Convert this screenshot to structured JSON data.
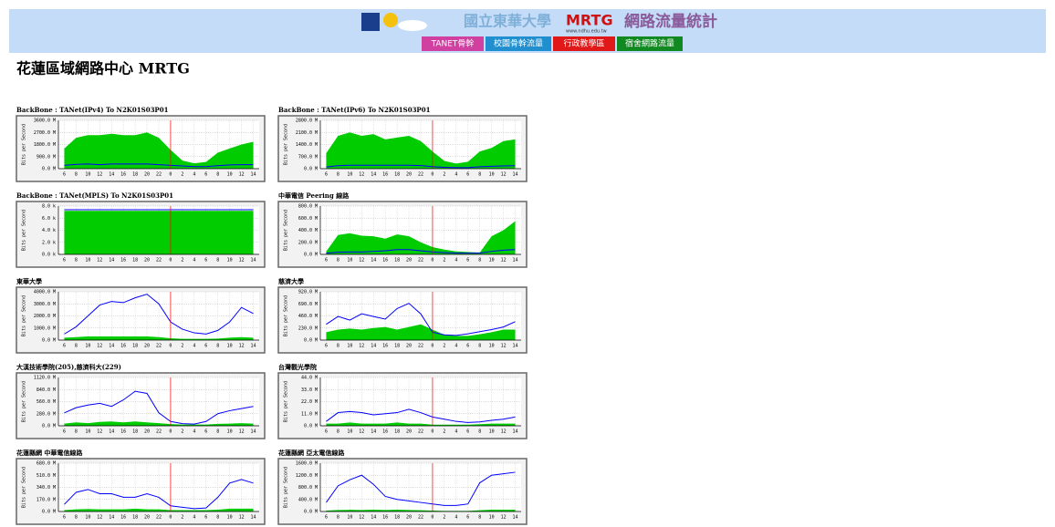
{
  "header": {
    "logo_text": "國立東華大學",
    "brand": "MRTG",
    "url": "www.ndhu.edu.tw",
    "subtitle": "網路流量統計",
    "nav": [
      "TANET骨幹",
      "校園骨幹流量",
      "行政教學區",
      "宿舍網路流量"
    ]
  },
  "page_title": "花蓮區域網路中心 MRTG",
  "chart_data": [
    {
      "type": "area",
      "title": "BackBone : TANet(IPv4) To N2K01S03P01",
      "y_label": "Bits per Second",
      "categories": [
        "6",
        "8",
        "10",
        "12",
        "14",
        "16",
        "18",
        "20",
        "22",
        "0",
        "2",
        "4",
        "6",
        "8",
        "10",
        "12",
        "14"
      ],
      "ylim": [
        0,
        3600
      ],
      "yticks": [
        {
          "value": 0,
          "label": "0.0 M"
        },
        {
          "value": 900,
          "label": "900.0 M"
        },
        {
          "value": 1800,
          "label": "1800.0 M"
        },
        {
          "value": 2700,
          "label": "2700.0 M"
        },
        {
          "value": 3600,
          "label": "3600.0 M"
        }
      ],
      "grid": true,
      "series": [
        {
          "color": "#00cc00",
          "fill": true,
          "values": [
            1500,
            2300,
            2500,
            2500,
            2600,
            2500,
            2500,
            2700,
            2300,
            1400,
            600,
            400,
            500,
            1200,
            1500,
            1800,
            2000
          ]
        },
        {
          "color": "#0000ff",
          "fill": false,
          "values": [
            250,
            320,
            350,
            300,
            350,
            350,
            350,
            350,
            300,
            250,
            200,
            150,
            150,
            220,
            280,
            300,
            300
          ]
        }
      ]
    },
    {
      "type": "area",
      "title": "BackBone : TANet(IPv6) To N2K01S03P01",
      "y_label": "Bits per Second",
      "categories": [
        "6",
        "8",
        "10",
        "12",
        "14",
        "16",
        "18",
        "20",
        "22",
        "0",
        "2",
        "4",
        "6",
        "8",
        "10",
        "12",
        "14"
      ],
      "ylim": [
        0,
        2800
      ],
      "yticks": [
        {
          "value": 0,
          "label": "0.0 M"
        },
        {
          "value": 700,
          "label": "700.0 M"
        },
        {
          "value": 1400,
          "label": "1400.0 M"
        },
        {
          "value": 2100,
          "label": "2100.0 M"
        },
        {
          "value": 2800,
          "label": "2800.0 M"
        }
      ],
      "grid": true,
      "series": [
        {
          "color": "#00cc00",
          "fill": true,
          "values": [
            900,
            1900,
            2100,
            1900,
            2000,
            1700,
            1800,
            1900,
            1600,
            1000,
            450,
            300,
            400,
            1000,
            1200,
            1600,
            1700
          ]
        },
        {
          "color": "#0000ff",
          "fill": false,
          "values": [
            100,
            170,
            200,
            200,
            200,
            200,
            200,
            200,
            180,
            120,
            80,
            60,
            60,
            110,
            140,
            160,
            170
          ]
        }
      ]
    },
    {
      "type": "area",
      "title": "BackBone : TANet(MPLS) To N2K01S03P01",
      "y_label": "Bits per Second",
      "categories": [
        "6",
        "8",
        "10",
        "12",
        "14",
        "16",
        "18",
        "20",
        "22",
        "0",
        "2",
        "4",
        "6",
        "8",
        "10",
        "12",
        "14"
      ],
      "ylim": [
        0,
        8
      ],
      "yticks": [
        {
          "value": 0,
          "label": "0.0 k"
        },
        {
          "value": 2,
          "label": "2.0 k"
        },
        {
          "value": 4,
          "label": "4.0 k"
        },
        {
          "value": 6,
          "label": "6.0 k"
        },
        {
          "value": 8,
          "label": "8.0 k"
        }
      ],
      "grid": true,
      "series": [
        {
          "color": "#00cc00",
          "fill": true,
          "values": [
            7.2,
            7.2,
            7.2,
            7.2,
            7.2,
            7.2,
            7.2,
            7.2,
            7.2,
            7.2,
            7.2,
            7.2,
            7.2,
            7.2,
            7.2,
            7.2,
            7.2
          ]
        },
        {
          "color": "#0000ff",
          "fill": false,
          "values": [
            7.4,
            7.4,
            7.4,
            7.4,
            7.4,
            7.4,
            7.4,
            7.4,
            7.4,
            7.4,
            7.4,
            7.4,
            7.4,
            7.4,
            7.4,
            7.4,
            7.4
          ]
        }
      ]
    },
    {
      "type": "area",
      "title": "中華電信 Peering 線路",
      "y_label": "Bits per Second",
      "categories": [
        "6",
        "8",
        "10",
        "12",
        "14",
        "16",
        "18",
        "20",
        "22",
        "0",
        "2",
        "4",
        "6",
        "8",
        "10",
        "12",
        "14"
      ],
      "ylim": [
        0,
        800
      ],
      "yticks": [
        {
          "value": 0,
          "label": "0.0 M"
        },
        {
          "value": 200,
          "label": "200.0 M"
        },
        {
          "value": 400,
          "label": "400.0 M"
        },
        {
          "value": 600,
          "label": "600.0 M"
        },
        {
          "value": 800,
          "label": "800.0 M"
        }
      ],
      "grid": true,
      "series": [
        {
          "color": "#00cc00",
          "fill": true,
          "values": [
            50,
            320,
            350,
            310,
            300,
            260,
            330,
            300,
            200,
            120,
            80,
            50,
            40,
            30,
            300,
            400,
            550
          ]
        },
        {
          "color": "#0000ff",
          "fill": false,
          "values": [
            20,
            35,
            40,
            40,
            50,
            60,
            80,
            80,
            60,
            40,
            30,
            20,
            20,
            20,
            50,
            70,
            80
          ]
        }
      ]
    },
    {
      "type": "area",
      "title": "東華大學",
      "y_label": "Bits per Second",
      "categories": [
        "6",
        "8",
        "10",
        "12",
        "14",
        "16",
        "18",
        "20",
        "22",
        "0",
        "2",
        "4",
        "6",
        "8",
        "10",
        "12",
        "14"
      ],
      "ylim": [
        0,
        4000
      ],
      "yticks": [
        {
          "value": 0,
          "label": "0.0 M"
        },
        {
          "value": 1000,
          "label": "1000.0 M"
        },
        {
          "value": 2000,
          "label": "2000.0 M"
        },
        {
          "value": 3000,
          "label": "3000.0 M"
        },
        {
          "value": 4000,
          "label": "4000.0 M"
        }
      ],
      "grid": true,
      "series": [
        {
          "color": "#00cc00",
          "fill": true,
          "values": [
            200,
            250,
            300,
            300,
            300,
            300,
            300,
            300,
            250,
            150,
            100,
            100,
            100,
            120,
            200,
            250,
            200
          ]
        },
        {
          "color": "#0000ff",
          "fill": false,
          "values": [
            500,
            1100,
            2000,
            2900,
            3200,
            3100,
            3500,
            3800,
            3000,
            1500,
            900,
            600,
            500,
            800,
            1500,
            2700,
            2200
          ]
        }
      ]
    },
    {
      "type": "area",
      "title": "慈濟大學",
      "y_label": "Bits per Second",
      "categories": [
        "6",
        "8",
        "10",
        "12",
        "14",
        "16",
        "18",
        "20",
        "22",
        "0",
        "2",
        "4",
        "6",
        "8",
        "10",
        "12",
        "14"
      ],
      "ylim": [
        0,
        920
      ],
      "yticks": [
        {
          "value": 0,
          "label": "0.0 M"
        },
        {
          "value": 230,
          "label": "230.0 M"
        },
        {
          "value": 460,
          "label": "460.0 M"
        },
        {
          "value": 690,
          "label": "690.0 M"
        },
        {
          "value": 920,
          "label": "920.0 M"
        }
      ],
      "grid": true,
      "series": [
        {
          "color": "#00cc00",
          "fill": true,
          "values": [
            150,
            200,
            220,
            200,
            230,
            250,
            200,
            250,
            300,
            200,
            100,
            80,
            80,
            110,
            150,
            200,
            200
          ]
        },
        {
          "color": "#0000ff",
          "fill": false,
          "values": [
            300,
            450,
            380,
            500,
            450,
            400,
            600,
            700,
            500,
            150,
            100,
            90,
            120,
            160,
            200,
            250,
            350
          ]
        }
      ]
    },
    {
      "type": "area",
      "title": "大漢技術學院(205),慈濟科大(229)",
      "y_label": "Bits per Second",
      "categories": [
        "6",
        "8",
        "10",
        "12",
        "14",
        "16",
        "18",
        "20",
        "22",
        "0",
        "2",
        "4",
        "6",
        "8",
        "10",
        "12",
        "14"
      ],
      "ylim": [
        0,
        1120
      ],
      "yticks": [
        {
          "value": 0,
          "label": "0.0 M"
        },
        {
          "value": 280,
          "label": "280.0 M"
        },
        {
          "value": 560,
          "label": "560.0 M"
        },
        {
          "value": 840,
          "label": "840.0 M"
        },
        {
          "value": 1120,
          "label": "1120.0 M"
        }
      ],
      "grid": true,
      "series": [
        {
          "color": "#00cc00",
          "fill": true,
          "values": [
            50,
            80,
            60,
            90,
            100,
            80,
            100,
            80,
            60,
            40,
            30,
            30,
            30,
            45,
            50,
            60,
            50
          ]
        },
        {
          "color": "#0000ff",
          "fill": false,
          "values": [
            300,
            420,
            480,
            520,
            450,
            600,
            800,
            750,
            300,
            100,
            50,
            40,
            100,
            280,
            350,
            400,
            450
          ]
        }
      ]
    },
    {
      "type": "area",
      "title": "台灣觀光學院",
      "y_label": "Bits per Second",
      "categories": [
        "6",
        "8",
        "10",
        "12",
        "14",
        "16",
        "18",
        "20",
        "22",
        "0",
        "2",
        "4",
        "6",
        "8",
        "10",
        "12",
        "14"
      ],
      "ylim": [
        0,
        44
      ],
      "yticks": [
        {
          "value": 0,
          "label": "0.0 M"
        },
        {
          "value": 11,
          "label": "11.0 M"
        },
        {
          "value": 22,
          "label": "22.0 M"
        },
        {
          "value": 33,
          "label": "33.0 M"
        },
        {
          "value": 44,
          "label": "44.0 M"
        }
      ],
      "grid": true,
      "series": [
        {
          "color": "#00cc00",
          "fill": true,
          "values": [
            2,
            2,
            3,
            2,
            2,
            2,
            3,
            2,
            2,
            1,
            1,
            1,
            1,
            1.5,
            2,
            2,
            2
          ]
        },
        {
          "color": "#0000ff",
          "fill": false,
          "values": [
            4,
            12,
            13,
            12,
            10,
            11,
            12,
            15,
            12,
            8,
            6,
            4,
            3,
            3.5,
            5,
            6,
            8
          ]
        }
      ]
    },
    {
      "type": "area",
      "title": "花蓮縣網 中華電信線路",
      "y_label": "Bits per Second",
      "categories": [
        "6",
        "8",
        "10",
        "12",
        "14",
        "16",
        "18",
        "20",
        "22",
        "0",
        "2",
        "4",
        "6",
        "8",
        "10",
        "12",
        "14"
      ],
      "ylim": [
        0,
        680
      ],
      "yticks": [
        {
          "value": 0,
          "label": "0.0 M"
        },
        {
          "value": 170,
          "label": "170.0 M"
        },
        {
          "value": 340,
          "label": "340.0 M"
        },
        {
          "value": 510,
          "label": "510.0 M"
        },
        {
          "value": 680,
          "label": "680.0 M"
        }
      ],
      "grid": true,
      "series": [
        {
          "color": "#00cc00",
          "fill": true,
          "values": [
            20,
            30,
            35,
            30,
            30,
            30,
            40,
            30,
            30,
            20,
            20,
            20,
            20,
            25,
            40,
            40,
            40
          ]
        },
        {
          "color": "#0000ff",
          "fill": false,
          "values": [
            100,
            270,
            310,
            250,
            250,
            200,
            200,
            250,
            200,
            80,
            60,
            40,
            50,
            200,
            400,
            450,
            400
          ]
        }
      ]
    },
    {
      "type": "area",
      "title": "花蓮縣網 亞太電信線路",
      "y_label": "Bits per Second",
      "categories": [
        "6",
        "8",
        "10",
        "12",
        "14",
        "16",
        "18",
        "20",
        "22",
        "0",
        "2",
        "4",
        "6",
        "8",
        "10",
        "12",
        "14"
      ],
      "ylim": [
        0,
        1600
      ],
      "yticks": [
        {
          "value": 0,
          "label": "0.0 M"
        },
        {
          "value": 400,
          "label": "400.0 M"
        },
        {
          "value": 800,
          "label": "800.0 M"
        },
        {
          "value": 1200,
          "label": "1200.0 M"
        },
        {
          "value": 1600,
          "label": "1600.0 M"
        }
      ],
      "grid": true,
      "series": [
        {
          "color": "#00cc00",
          "fill": true,
          "values": [
            30,
            50,
            55,
            50,
            60,
            50,
            60,
            50,
            40,
            30,
            20,
            20,
            20,
            40,
            60,
            60,
            60
          ]
        },
        {
          "color": "#0000ff",
          "fill": false,
          "values": [
            300,
            850,
            1050,
            1200,
            900,
            500,
            400,
            350,
            300,
            250,
            200,
            200,
            250,
            950,
            1200,
            1250,
            1300
          ]
        }
      ]
    }
  ]
}
